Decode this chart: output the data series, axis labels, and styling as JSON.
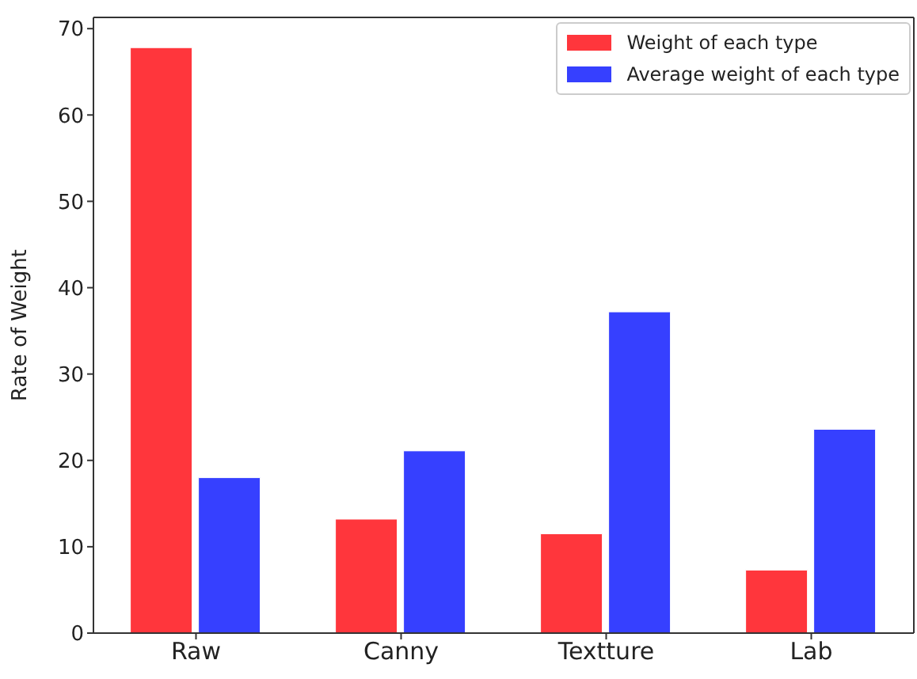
{
  "chart_data": {
    "type": "bar",
    "ylabel": "Rate of Weight",
    "categories": [
      "Raw",
      "Canny",
      "Textture",
      "Lab"
    ],
    "series": [
      {
        "name": "Weight of each type",
        "color": "#ff363c",
        "values": [
          67.8,
          13.2,
          11.5,
          7.3
        ]
      },
      {
        "name": "Average weight of each type",
        "color": "#3640ff",
        "values": [
          18,
          21.1,
          37.2,
          23.6
        ]
      }
    ],
    "ylim": [
      0,
      71.3
    ],
    "yticks": [
      0,
      10,
      20,
      30,
      40,
      50,
      60,
      70
    ],
    "grid": false,
    "legend": "top right"
  }
}
